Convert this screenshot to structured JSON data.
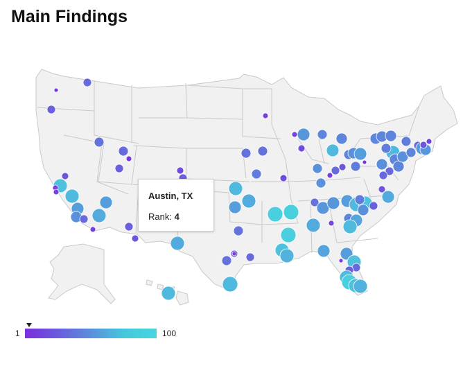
{
  "page": {
    "title": "Main Findings"
  },
  "tooltip": {
    "city": "Austin, TX",
    "rank_label": "Rank:",
    "rank_value": "4"
  },
  "legend": {
    "min": "1",
    "max": "100",
    "color_low": "#7a2fdc",
    "color_high": "#48d6de",
    "marker_value": 1
  },
  "map": {
    "land_color": "#f1f1f1",
    "border_color": "#c9c9c9",
    "dot_stroke": "#ffffff"
  }
}
